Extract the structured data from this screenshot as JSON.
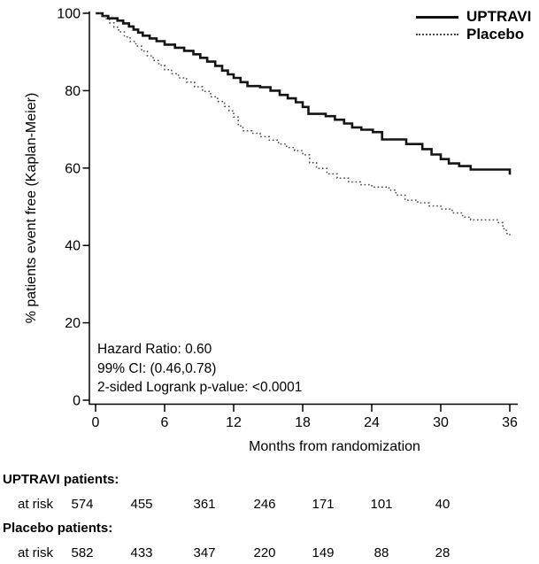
{
  "legend": {
    "series": [
      {
        "label": "UPTRAVI",
        "style": "solid"
      },
      {
        "label": "Placebo",
        "style": "dotted"
      }
    ]
  },
  "annotation": {
    "lines": [
      "Hazard Ratio: 0.60",
      "99% CI: (0.46,0.78)",
      "2-sided Logrank p-value: <0.0001"
    ]
  },
  "chart_data": {
    "type": "line",
    "subtype": "kaplan-meier-step",
    "title": "",
    "xlabel": "Months from randomization",
    "ylabel": "% patients event free (Kaplan-Meier)",
    "xlim": [
      0,
      36
    ],
    "ylim": [
      0,
      100
    ],
    "xticks": [
      0,
      6,
      12,
      18,
      24,
      30,
      36
    ],
    "yticks": [
      0,
      20,
      40,
      60,
      80,
      100
    ],
    "grid": false,
    "legend_position": "top-right",
    "colors": {
      "uptravi": "#141414",
      "placebo": "#4a473f"
    },
    "series": [
      {
        "name": "UPTRAVI",
        "line": "solid",
        "color": "#141414",
        "points": [
          [
            0,
            100
          ],
          [
            0.6,
            99.3
          ],
          [
            1.1,
            98.7
          ],
          [
            1.9,
            98.1
          ],
          [
            2.4,
            97.4
          ],
          [
            2.9,
            96.6
          ],
          [
            3.3,
            95.8
          ],
          [
            3.7,
            95.0
          ],
          [
            4.1,
            94.2
          ],
          [
            4.7,
            93.5
          ],
          [
            5.3,
            92.8
          ],
          [
            6.0,
            91.9
          ],
          [
            6.9,
            91.1
          ],
          [
            7.7,
            90.3
          ],
          [
            8.5,
            89.4
          ],
          [
            9.1,
            88.5
          ],
          [
            9.7,
            87.5
          ],
          [
            10.4,
            86.4
          ],
          [
            11.0,
            85.2
          ],
          [
            11.5,
            84.2
          ],
          [
            12.0,
            83.3
          ],
          [
            12.6,
            82.2
          ],
          [
            13.2,
            81.2
          ],
          [
            14.3,
            80.9
          ],
          [
            15.2,
            80.0
          ],
          [
            16.0,
            78.9
          ],
          [
            16.7,
            78.0
          ],
          [
            17.4,
            77.0
          ],
          [
            18.0,
            75.8
          ],
          [
            18.5,
            74.0
          ],
          [
            20.0,
            73.4
          ],
          [
            20.8,
            72.5
          ],
          [
            21.6,
            71.5
          ],
          [
            22.3,
            70.5
          ],
          [
            23.1,
            69.9
          ],
          [
            24.1,
            69.3
          ],
          [
            24.9,
            67.4
          ],
          [
            27.0,
            66.2
          ],
          [
            28.4,
            64.9
          ],
          [
            29.2,
            63.5
          ],
          [
            30.0,
            62.3
          ],
          [
            30.7,
            61.2
          ],
          [
            31.6,
            60.5
          ],
          [
            32.6,
            59.6
          ],
          [
            36.0,
            58.3
          ]
        ]
      },
      {
        "name": "Placebo",
        "line": "dotted",
        "color": "#4a473f",
        "points": [
          [
            0,
            100
          ],
          [
            0.4,
            99.4
          ],
          [
            0.8,
            98.6
          ],
          [
            1.2,
            97.5
          ],
          [
            1.6,
            96.4
          ],
          [
            2.0,
            95.2
          ],
          [
            2.5,
            93.9
          ],
          [
            3.0,
            92.7
          ],
          [
            3.5,
            91.5
          ],
          [
            4.0,
            90.2
          ],
          [
            4.5,
            89.0
          ],
          [
            5.0,
            87.8
          ],
          [
            5.5,
            86.6
          ],
          [
            6.0,
            85.4
          ],
          [
            6.6,
            84.4
          ],
          [
            7.2,
            83.3
          ],
          [
            7.9,
            82.2
          ],
          [
            8.6,
            81.0
          ],
          [
            9.3,
            79.8
          ],
          [
            10.0,
            78.4
          ],
          [
            10.6,
            77.2
          ],
          [
            11.2,
            75.9
          ],
          [
            11.6,
            74.8
          ],
          [
            12.0,
            73.2
          ],
          [
            12.4,
            70.9
          ],
          [
            12.8,
            69.6
          ],
          [
            13.6,
            69.0
          ],
          [
            14.3,
            68.1
          ],
          [
            15.1,
            67.2
          ],
          [
            15.9,
            66.2
          ],
          [
            16.6,
            65.3
          ],
          [
            17.3,
            64.5
          ],
          [
            18.0,
            63.4
          ],
          [
            18.6,
            61.4
          ],
          [
            19.2,
            59.9
          ],
          [
            20.1,
            58.5
          ],
          [
            21.0,
            57.4
          ],
          [
            22.0,
            56.4
          ],
          [
            23.0,
            55.7
          ],
          [
            24.0,
            55.1
          ],
          [
            25.5,
            54.3
          ],
          [
            26.1,
            53.0
          ],
          [
            26.9,
            51.7
          ],
          [
            28.0,
            51.0
          ],
          [
            29.0,
            50.2
          ],
          [
            30.0,
            49.4
          ],
          [
            31.0,
            48.4
          ],
          [
            31.9,
            47.3
          ],
          [
            32.6,
            46.6
          ],
          [
            35.0,
            45.9
          ],
          [
            35.4,
            44.3
          ],
          [
            35.7,
            43.1
          ],
          [
            36.0,
            42.2
          ]
        ]
      }
    ]
  },
  "risk_table": {
    "groups": [
      {
        "label": "UPTRAVI patients:",
        "row_label": "at risk",
        "counts": [
          574,
          455,
          361,
          246,
          171,
          101,
          40
        ]
      },
      {
        "label": "Placebo patients:",
        "row_label": "at risk",
        "counts": [
          582,
          433,
          347,
          220,
          149,
          88,
          28
        ]
      }
    ]
  }
}
